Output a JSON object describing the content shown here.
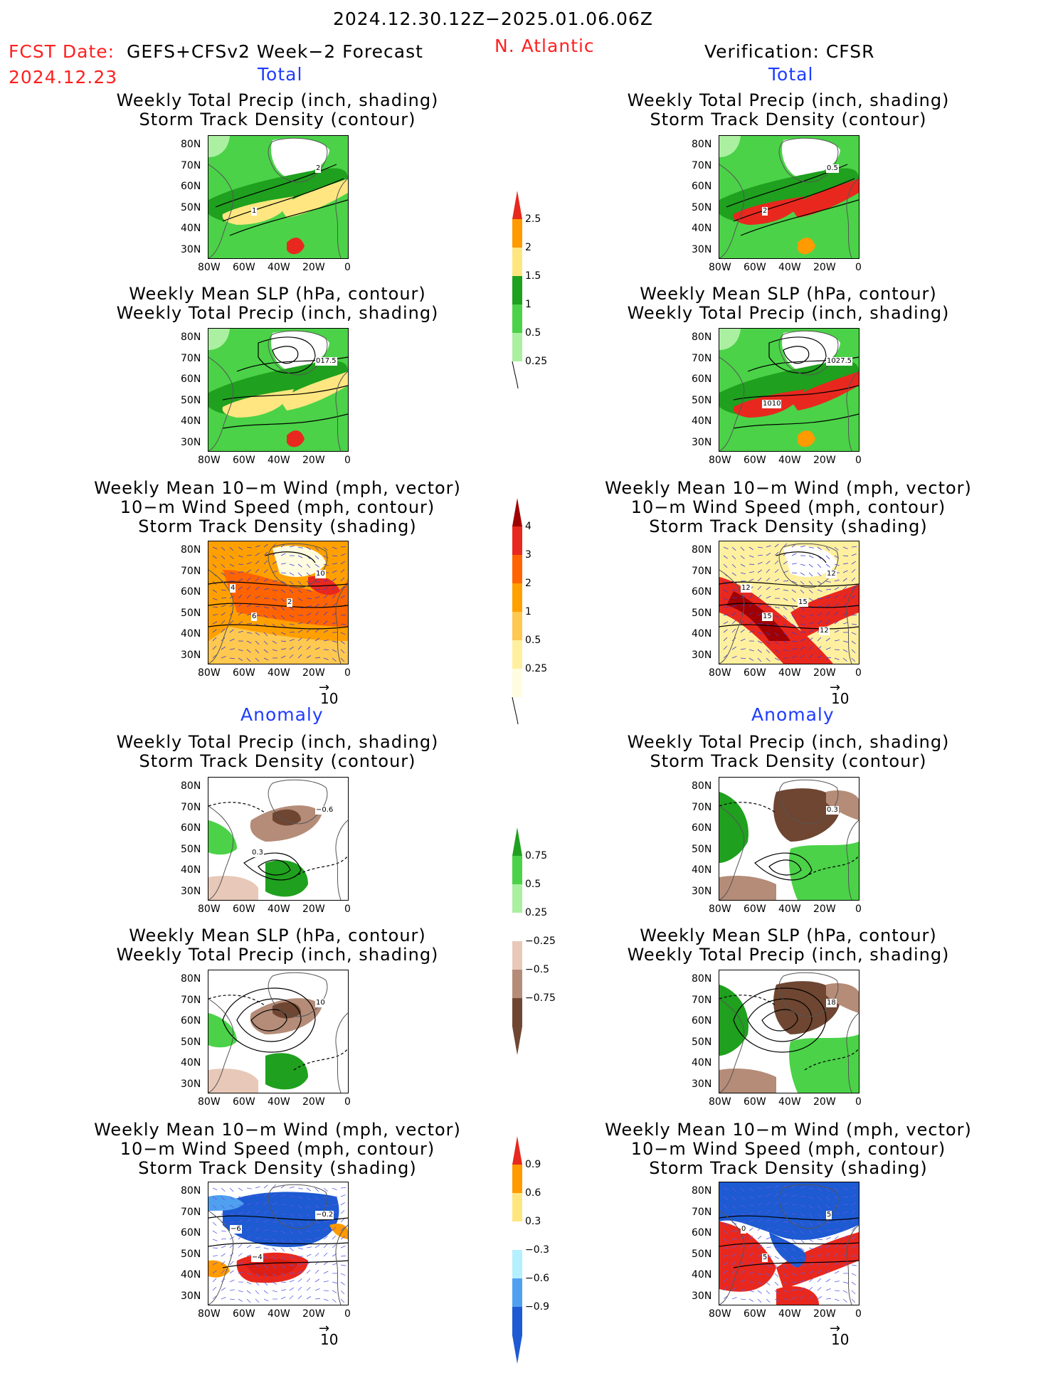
{
  "header": {
    "date_range": "2024.12.30.12Z−2025.01.06.06Z",
    "fcst_label": "FCST Date:",
    "model": "GEFS+CFSv2 Week−2 Forecast",
    "fcst_date": "2024.12.23",
    "region": "N. Atlantic",
    "verification": "Verification: CFSR"
  },
  "sections": {
    "total": "Total",
    "anomaly": "Anomaly"
  },
  "titles": {
    "precip_storm": [
      "Weekly Total Precip (inch, shading)",
      "Storm Track Density (contour)"
    ],
    "slp_precip": [
      "Weekly Mean SLP (hPa, contour)",
      "Weekly Total Precip (inch, shading)"
    ],
    "wind_storm": [
      "Weekly Mean 10−m Wind (mph, vector)",
      "10−m Wind Speed (mph, contour)",
      "Storm Track Density (shading)"
    ]
  },
  "axes": {
    "lat": [
      "80N",
      "70N",
      "60N",
      "50N",
      "40N",
      "30N"
    ],
    "lon": [
      "80W",
      "60W",
      "40W",
      "20W",
      "0"
    ]
  },
  "vector_ref": "10",
  "colorbars": {
    "total_precip": {
      "labels": [
        "2.5",
        "2",
        "1.5",
        "1",
        "0.5",
        "0.25"
      ],
      "colors": [
        "#e8281e",
        "#ff9a00",
        "#ffe680",
        "#1fa01e",
        "#4bd248",
        "#aaf0a0"
      ]
    },
    "total_storm": {
      "labels": [
        "4",
        "3",
        "2",
        "1",
        "0.5",
        "0.25"
      ],
      "colors": [
        "#a00000",
        "#e8281e",
        "#ff6400",
        "#ffa000",
        "#ffc850",
        "#fff0a0",
        "#fffce0"
      ]
    },
    "anom_precip": {
      "labels": [
        "0.75",
        "0.5",
        "0.25",
        "−0.25",
        "−0.5",
        "−0.75"
      ],
      "colors": [
        "#1fa01e",
        "#4bd248",
        "#aaf0a0",
        "#ffffff",
        "#e8c8b8",
        "#b48c78",
        "#6e4632"
      ]
    },
    "anom_storm": {
      "labels": [
        "0.9",
        "0.6",
        "0.3",
        "−0.3",
        "−0.6",
        "−0.9"
      ],
      "colors": [
        "#e8281e",
        "#ff9a00",
        "#ffe680",
        "#ffffff",
        "#b4f0ff",
        "#50a0f0",
        "#1e5ad2"
      ]
    }
  },
  "contour_labels": {
    "fp": [
      "2",
      "1"
    ],
    "vp": [
      "0.5",
      "2"
    ],
    "fs": [
      "017.5"
    ],
    "vs": [
      "1027.5",
      "1010"
    ],
    "fw": [
      "10",
      "6",
      "4",
      "2"
    ],
    "vw": [
      "12",
      "15",
      "12",
      "15",
      "12"
    ],
    "fpa": [
      "−0.6",
      "0.3"
    ],
    "vpa": [
      "0.3"
    ],
    "fsa": [
      "10"
    ],
    "vsa": [
      "18"
    ],
    "fwa": [
      "−0.2",
      "−4",
      "−6"
    ],
    "vwa": [
      "5",
      "5",
      "0"
    ]
  }
}
